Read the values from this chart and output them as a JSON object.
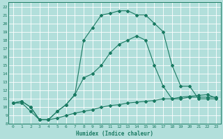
{
  "xlabel": "Humidex (Indice chaleur)",
  "background_color": "#b2dfdb",
  "grid_color": "#ffffff",
  "line_color": "#1a7a62",
  "xlim": [
    -0.5,
    23.5
  ],
  "ylim": [
    8,
    22.5
  ],
  "xticks": [
    0,
    1,
    2,
    3,
    4,
    5,
    6,
    7,
    8,
    9,
    10,
    11,
    12,
    13,
    14,
    15,
    16,
    17,
    18,
    19,
    20,
    21,
    22,
    23
  ],
  "yticks": [
    8,
    9,
    10,
    11,
    12,
    13,
    14,
    15,
    16,
    17,
    18,
    19,
    20,
    21,
    22
  ],
  "series1_x": [
    0,
    1,
    2,
    3,
    4,
    5,
    6,
    7,
    8,
    9,
    10,
    11,
    12,
    13,
    14,
    15,
    16,
    17,
    18,
    19,
    20,
    21,
    22,
    23
  ],
  "series1_y": [
    10.5,
    10.5,
    9.5,
    8.5,
    8.5,
    8.7,
    9.0,
    9.3,
    9.5,
    9.7,
    10.0,
    10.2,
    10.3,
    10.5,
    10.6,
    10.7,
    10.8,
    11.0,
    11.0,
    11.2,
    11.3,
    11.4,
    11.5,
    11.1
  ],
  "series2_x": [
    0,
    1,
    2,
    3,
    4,
    5,
    6,
    7,
    8,
    9,
    10,
    11,
    12,
    13,
    14,
    15,
    16,
    17,
    18,
    19,
    20,
    21,
    22,
    23
  ],
  "series2_y": [
    10.5,
    10.7,
    10.0,
    8.5,
    8.5,
    9.5,
    10.3,
    11.5,
    13.5,
    14.0,
    15.0,
    16.5,
    17.5,
    18.0,
    18.5,
    18.0,
    15.0,
    12.5,
    11.0,
    11.0,
    11.2,
    11.2,
    11.2,
    11.2
  ],
  "series3_x": [
    0,
    1,
    2,
    3,
    4,
    5,
    6,
    7,
    8,
    9,
    10,
    11,
    12,
    13,
    14,
    15,
    16,
    17,
    18,
    19,
    20,
    21,
    22,
    23
  ],
  "series3_y": [
    10.5,
    10.7,
    10.0,
    8.5,
    8.5,
    9.5,
    10.3,
    11.5,
    18.0,
    19.5,
    21.0,
    21.2,
    21.5,
    21.5,
    21.0,
    21.0,
    20.0,
    19.0,
    15.0,
    12.5,
    12.5,
    11.0,
    11.0,
    11.0
  ]
}
